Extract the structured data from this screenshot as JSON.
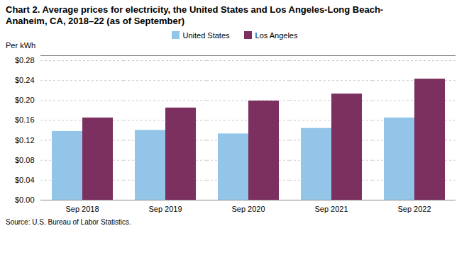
{
  "chart_data": {
    "type": "bar",
    "title": "Chart 2. Average prices for electricity, the United States and Los Angeles-Long Beach-\nAnaheim, CA, 2018–22 (as of September)",
    "ylabel": "Per kWh",
    "source": "Source: U.S. Bureau of Labor Statistics.",
    "categories": [
      "Sep 2018",
      "Sep 2019",
      "Sep 2020",
      "Sep 2021",
      "Sep 2022"
    ],
    "series": [
      {
        "name": "United States",
        "color": "#92C5E8",
        "values": [
          0.138,
          0.14,
          0.133,
          0.144,
          0.165
        ]
      },
      {
        "name": "Los Angeles",
        "color": "#7B3060",
        "values": [
          0.165,
          0.185,
          0.199,
          0.213,
          0.243
        ]
      }
    ],
    "ylim": [
      0,
      0.29
    ],
    "yticks": [
      {
        "value": 0.0,
        "label": "$0.00"
      },
      {
        "value": 0.04,
        "label": "$0.04"
      },
      {
        "value": 0.08,
        "label": "$0.08"
      },
      {
        "value": 0.12,
        "label": "$0.12"
      },
      {
        "value": 0.16,
        "label": "$0.16"
      },
      {
        "value": 0.2,
        "label": "$0.20"
      },
      {
        "value": 0.24,
        "label": "$0.24"
      },
      {
        "value": 0.28,
        "label": "$0.28"
      }
    ],
    "grid": true,
    "legend": "top"
  }
}
